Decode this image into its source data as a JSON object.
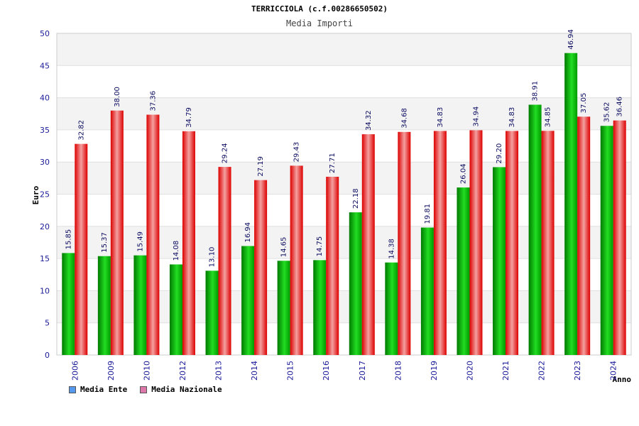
{
  "chart_data": {
    "type": "bar",
    "title": "TERRICCIOLA (c.f.00286650502)",
    "subtitle": "Media Importi",
    "ylabel": "Euro",
    "xlabel": "Anno",
    "ylim": [
      0,
      50
    ],
    "yticks": [
      0,
      5,
      10,
      15,
      20,
      25,
      30,
      35,
      40,
      45,
      50
    ],
    "grid": true,
    "legend_position": "bottom-left",
    "categories": [
      "2006",
      "2009",
      "2010",
      "2012",
      "2013",
      "2014",
      "2015",
      "2016",
      "2017",
      "2018",
      "2019",
      "2020",
      "2021",
      "2022",
      "2023",
      "2024"
    ],
    "series": [
      {
        "name": "Media Ente",
        "color": "#00bb00",
        "values": [
          15.85,
          15.37,
          15.49,
          14.08,
          13.1,
          16.94,
          14.65,
          14.75,
          22.18,
          14.38,
          19.81,
          26.04,
          29.2,
          38.91,
          46.94,
          35.62
        ],
        "labels": [
          "15.85",
          "15.37",
          "15.49",
          "14.08",
          "13.10",
          "16.94",
          "14.65",
          "14.75",
          "22.18",
          "14.38",
          "19.81",
          "26.04",
          "29.20",
          "38.91",
          "46.94",
          "35.62"
        ]
      },
      {
        "name": "Media Nazionale",
        "color": "#ee1111",
        "values": [
          32.82,
          38.0,
          37.36,
          34.79,
          29.24,
          27.19,
          29.43,
          27.71,
          34.32,
          34.68,
          34.83,
          34.94,
          34.83,
          34.85,
          37.05,
          36.46
        ],
        "labels": [
          "32.82",
          "38.00",
          "37.36",
          "34.79",
          "29.24",
          "27.19",
          "29.43",
          "27.71",
          "34.32",
          "34.68",
          "34.83",
          "34.94",
          "34.83",
          "34.85",
          "37.05",
          "36.46"
        ]
      }
    ]
  },
  "legend": {
    "items": [
      {
        "label": "Media Ente",
        "color": "#5599ee"
      },
      {
        "label": "Media Nazionale",
        "color": "#dd77aa"
      }
    ]
  }
}
